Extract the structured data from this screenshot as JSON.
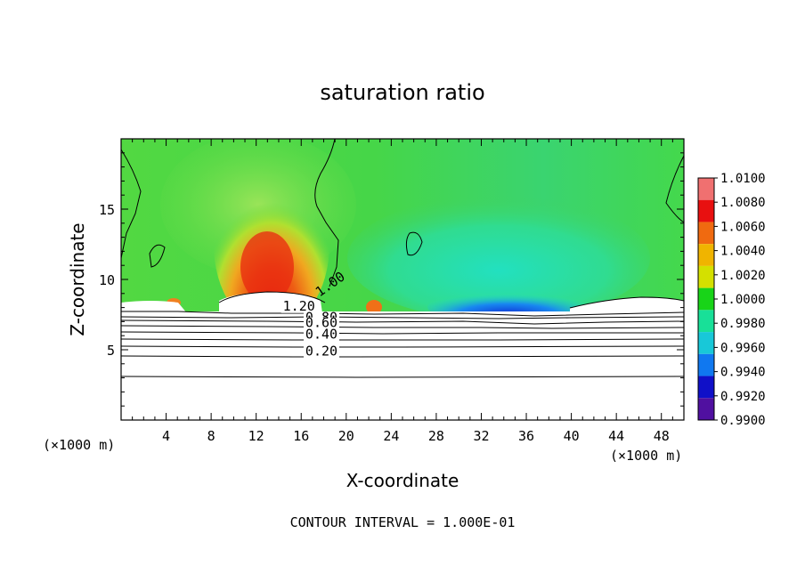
{
  "chart_data": {
    "type": "heatmap",
    "title": "saturation ratio",
    "xlabel": "X-coordinate",
    "ylabel": "Z-coordinate",
    "x_unit_left": "(×1000 m)",
    "x_unit_right": "(×1000 m)",
    "xlim": [
      0,
      50
    ],
    "ylim": [
      0,
      20
    ],
    "x_ticks": [
      4,
      8,
      12,
      16,
      20,
      24,
      28,
      32,
      36,
      40,
      44,
      48
    ],
    "x_tick_labels": [
      "4",
      "8",
      "12",
      "16",
      "20",
      "24",
      "28",
      "32",
      "36",
      "40",
      "44",
      "48"
    ],
    "y_ticks": [
      5,
      10,
      15
    ],
    "y_tick_labels": [
      "5",
      "10",
      "15"
    ],
    "contour_labels": [
      {
        "text": "1.20",
        "x": 15.8,
        "z": 7.8
      },
      {
        "text": "0.80",
        "x": 17.8,
        "z": 7.0
      },
      {
        "text": "0.60",
        "x": 17.8,
        "z": 6.6
      },
      {
        "text": "0.40",
        "x": 17.8,
        "z": 5.8
      },
      {
        "text": "0.20",
        "x": 17.8,
        "z": 4.6
      },
      {
        "text": "1.00",
        "x": 18.8,
        "z": 9.4
      }
    ],
    "colorbar": {
      "labels": [
        "1.0100",
        "1.0080",
        "1.0060",
        "1.0040",
        "1.0020",
        "1.0000",
        "0.9980",
        "0.9960",
        "0.9940",
        "0.9920",
        "0.9900"
      ],
      "values": [
        1.01,
        1.008,
        1.006,
        1.004,
        1.002,
        1.0,
        0.998,
        0.996,
        0.994,
        0.992,
        0.99
      ],
      "colors": [
        "#f07070",
        "#e81010",
        "#f06a10",
        "#f0b400",
        "#d4e000",
        "#18d418",
        "#18e098",
        "#18c8d8",
        "#1078f0",
        "#1010c8",
        "#5010a0"
      ]
    },
    "field_colors": {
      "background_green": "#40d448",
      "light_green": "#7ae050",
      "plume_red": "#e83010",
      "plume_orange": "#f07818",
      "plume_yellow": "#e8d820",
      "cyan_region": "#30e0a0",
      "blue_dip": "#1858e8"
    },
    "footer": "CONTOUR INTERVAL = 1.000E-01"
  }
}
